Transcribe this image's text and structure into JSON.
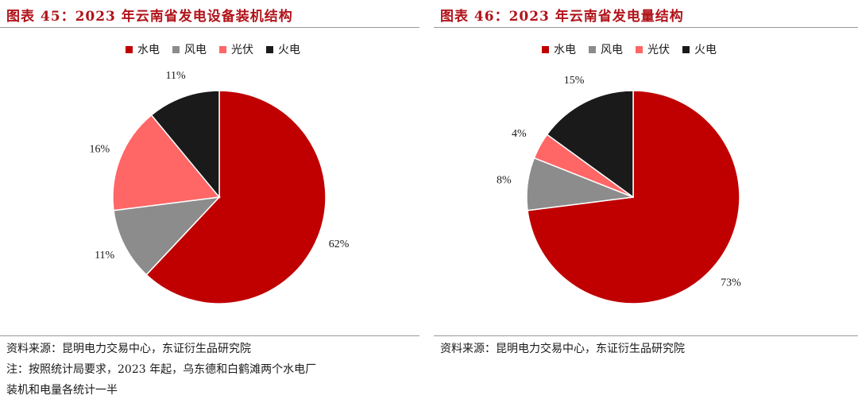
{
  "colors": {
    "hydro": "#c00000",
    "wind": "#8c8c8c",
    "solar": "#ff6666",
    "thermal": "#1a1a1a",
    "title": "#b1131a"
  },
  "legend": [
    "水电",
    "风电",
    "光伏",
    "火电"
  ],
  "left": {
    "title": "图表 45：2023 年云南省发电设备装机结构",
    "source": "资料来源：昆明电力交易中心，东证衍生品研究院",
    "note_line1": "注：按照统计局要求，2023 年起，乌东德和白鹤滩两个水电厂",
    "note_line2": "装机和电量各统计一半"
  },
  "right": {
    "title": "图表 46：2023 年云南省发电量结构",
    "source": "资料来源：昆明电力交易中心，东证衍生品研究院"
  },
  "chart_data": [
    {
      "type": "pie",
      "title": "2023 年云南省发电设备装机结构",
      "legend_position": "top",
      "slices": [
        {
          "name": "水电",
          "value": 62,
          "label": "62%"
        },
        {
          "name": "风电",
          "value": 11,
          "label": "11%"
        },
        {
          "name": "光伏",
          "value": 16,
          "label": "16%"
        },
        {
          "name": "火电",
          "value": 11,
          "label": "11%"
        }
      ]
    },
    {
      "type": "pie",
      "title": "2023 年云南省发电量结构",
      "legend_position": "top",
      "slices": [
        {
          "name": "水电",
          "value": 73,
          "label": "73%"
        },
        {
          "name": "风电",
          "value": 8,
          "label": "8%"
        },
        {
          "name": "光伏",
          "value": 4,
          "label": "4%"
        },
        {
          "name": "火电",
          "value": 15,
          "label": "15%"
        }
      ]
    }
  ]
}
